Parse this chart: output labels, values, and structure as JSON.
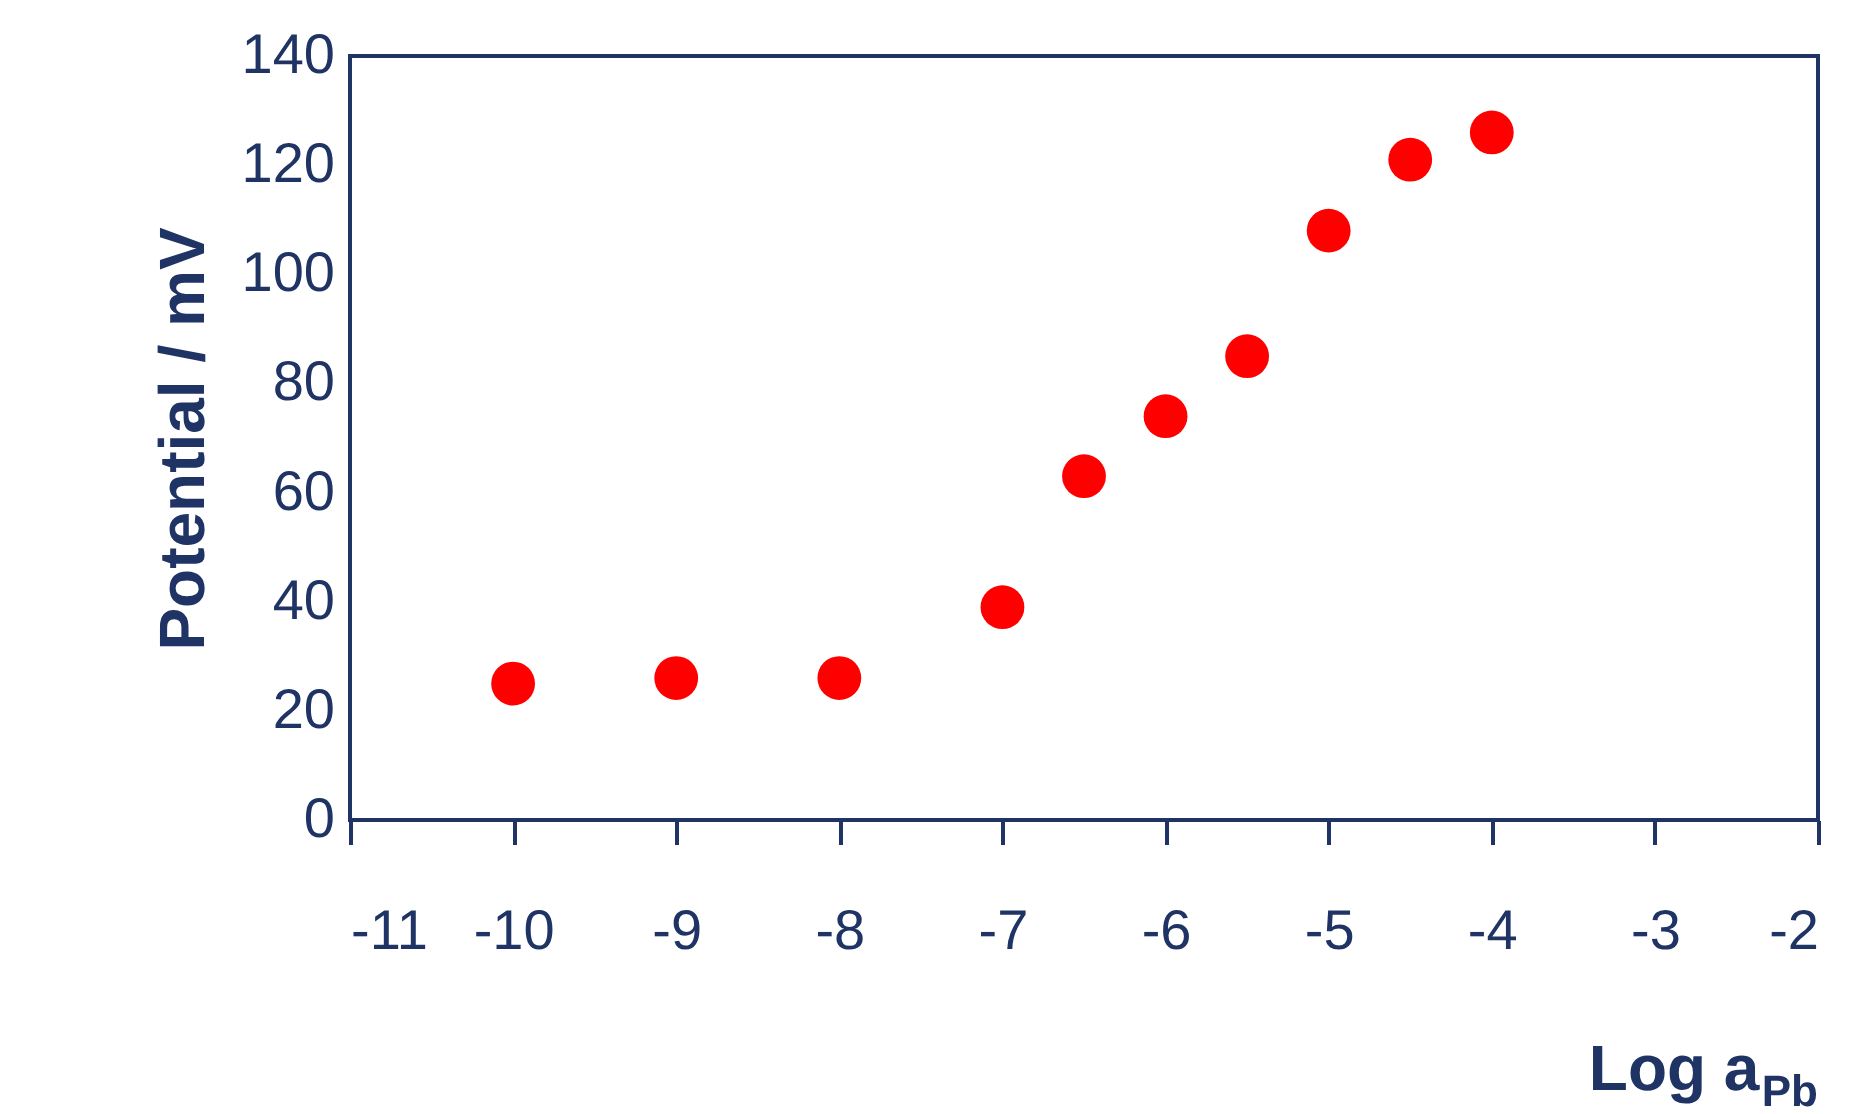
{
  "chart_data": {
    "type": "scatter",
    "xlabel": "Log a$_{Pb}$",
    "ylabel": "Potential / mV",
    "x": [
      -10,
      -9,
      -8,
      -7,
      -6.5,
      -6,
      -5.5,
      -5,
      -4.5,
      -4
    ],
    "series": [
      {
        "color": "#ff0000",
        "values": [
          25,
          26,
          26,
          39,
          63,
          74,
          85,
          108,
          121,
          126
        ]
      }
    ],
    "xlim": [
      -11,
      -2
    ],
    "xticks": [
      -11,
      -10,
      -9,
      -8,
      -7,
      -6,
      -5,
      -4,
      -3,
      -2
    ],
    "ylim": [
      0,
      140
    ],
    "yticks": [
      0,
      20,
      40,
      60,
      80,
      100,
      120,
      140
    ],
    "grid": false,
    "legend": false,
    "marker": "circle"
  }
}
